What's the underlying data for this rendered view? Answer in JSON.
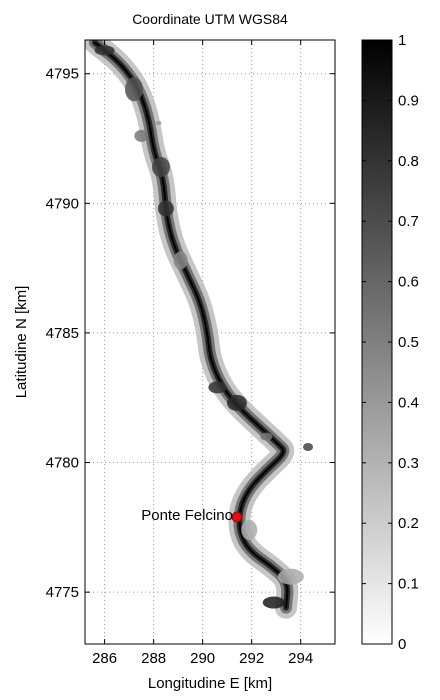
{
  "figure": {
    "title": "Coordinate UTM WGS84",
    "xlabel": "Longitudine E [km]",
    "ylabel": "Latitudine N [km]",
    "x_ticks": [
      "286",
      "288",
      "290",
      "292",
      "294"
    ],
    "y_ticks": [
      "4775",
      "4780",
      "4785",
      "4790",
      "4795"
    ],
    "colorbar_ticks": [
      "0",
      "0.1",
      "0.2",
      "0.3",
      "0.4",
      "0.5",
      "0.6",
      "0.7",
      "0.8",
      "0.9",
      "1"
    ],
    "colorbar_range": [
      0,
      1
    ],
    "colormap": "gray-reversed (0 = white, 1 = black)",
    "grid": "on (dotted)",
    "x_range": [
      285.2,
      295.4
    ],
    "y_range": [
      4773,
      4796.3
    ],
    "colors": {
      "marker": "#dd1111",
      "river": "#111111",
      "grid": "#9a9a9a"
    }
  },
  "chart_data": {
    "type": "heatmap",
    "title": "Coordinate UTM WGS84",
    "xlabel": "Longitudine E [km]",
    "ylabel": "Latitudine N [km]",
    "xlim": [
      285.2,
      295.4
    ],
    "ylim": [
      4773,
      4796.3
    ],
    "colorbar": {
      "min": 0,
      "max": 1
    },
    "river_path": [
      [
        285.6,
        4796.2
      ],
      [
        286.4,
        4795.6
      ],
      [
        286.9,
        4795.1
      ],
      [
        287.4,
        4794.4
      ],
      [
        287.8,
        4793.3
      ],
      [
        288.0,
        4792.0
      ],
      [
        288.4,
        4791.0
      ],
      [
        288.5,
        4789.6
      ],
      [
        288.8,
        4788.4
      ],
      [
        289.4,
        4787.2
      ],
      [
        289.9,
        4786.2
      ],
      [
        290.2,
        4785.0
      ],
      [
        290.3,
        4784.0
      ],
      [
        290.8,
        4782.9
      ],
      [
        291.5,
        4782.1
      ],
      [
        292.3,
        4781.4
      ],
      [
        293.1,
        4780.7
      ],
      [
        293.4,
        4780.4
      ],
      [
        292.6,
        4779.7
      ],
      [
        291.9,
        4779.0
      ],
      [
        291.5,
        4778.2
      ],
      [
        291.5,
        4777.3
      ],
      [
        291.9,
        4776.6
      ],
      [
        292.8,
        4776.0
      ],
      [
        293.5,
        4775.4
      ],
      [
        293.4,
        4774.4
      ]
    ],
    "markers": [
      {
        "label": "Ponte Felcino",
        "x": 291.4,
        "y": 4777.9
      }
    ]
  }
}
